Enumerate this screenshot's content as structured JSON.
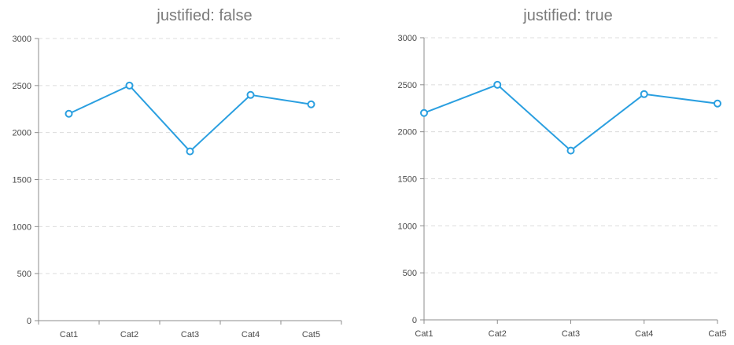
{
  "chart_data": [
    {
      "type": "line",
      "title": "justified: false",
      "justified": false,
      "categories": [
        "Cat1",
        "Cat2",
        "Cat3",
        "Cat4",
        "Cat5"
      ],
      "series": [
        {
          "values": [
            2200,
            2500,
            1800,
            2400,
            2300
          ],
          "color": "#2a9fe0"
        }
      ],
      "ylim": [
        0,
        3000
      ],
      "yticks": [
        0,
        500,
        1000,
        1500,
        2000,
        2500,
        3000
      ],
      "grid": true,
      "legend": "none"
    },
    {
      "type": "line",
      "title": "justified: true",
      "justified": true,
      "categories": [
        "Cat1",
        "Cat2",
        "Cat3",
        "Cat4",
        "Cat5"
      ],
      "series": [
        {
          "values": [
            2200,
            2500,
            1800,
            2400,
            2300
          ],
          "color": "#2a9fe0"
        }
      ],
      "ylim": [
        0,
        3000
      ],
      "yticks": [
        0,
        500,
        1000,
        1500,
        2000,
        2500,
        3000
      ],
      "grid": true,
      "legend": "none"
    }
  ]
}
